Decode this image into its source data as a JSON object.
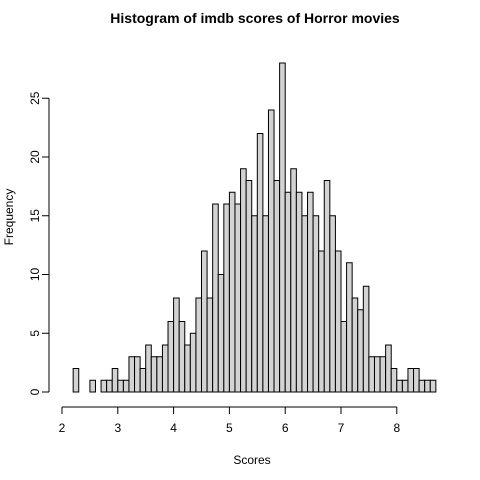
{
  "chart_data": {
    "type": "bar",
    "title": "Histogram of imdb scores of Horror movies",
    "xlabel": "Scores",
    "ylabel": "Frequency",
    "xlim": [
      2,
      8.7
    ],
    "ylim": [
      0,
      28
    ],
    "x_ticks": [
      2,
      3,
      4,
      5,
      6,
      7,
      8
    ],
    "y_ticks": [
      0,
      5,
      10,
      15,
      20,
      25
    ],
    "bin_width": 0.1,
    "bins_start": [
      2.2,
      2.3,
      2.4,
      2.5,
      2.6,
      2.7,
      2.8,
      2.9,
      3.0,
      3.1,
      3.2,
      3.3,
      3.4,
      3.5,
      3.6,
      3.7,
      3.8,
      3.9,
      4.0,
      4.1,
      4.2,
      4.3,
      4.4,
      4.5,
      4.6,
      4.7,
      4.8,
      4.9,
      5.0,
      5.1,
      5.2,
      5.3,
      5.4,
      5.5,
      5.6,
      5.7,
      5.8,
      5.9,
      6.0,
      6.1,
      6.2,
      6.3,
      6.4,
      6.5,
      6.6,
      6.7,
      6.8,
      6.9,
      7.0,
      7.1,
      7.2,
      7.3,
      7.4,
      7.5,
      7.6,
      7.7,
      7.8,
      7.9,
      8.0,
      8.1,
      8.2,
      8.3,
      8.4,
      8.5,
      8.6
    ],
    "values": [
      2,
      0,
      0,
      1,
      0,
      1,
      1,
      2,
      1,
      1,
      3,
      3,
      2,
      4,
      3,
      3,
      4,
      6,
      8,
      6,
      4,
      5,
      8,
      12,
      8,
      16,
      10,
      16,
      17,
      16,
      19,
      18,
      15,
      22,
      15,
      24,
      18,
      28,
      17,
      19,
      17,
      15,
      17,
      15,
      12,
      18,
      15,
      12,
      6,
      11,
      8,
      7,
      9,
      3,
      3,
      3,
      4,
      2,
      1,
      1,
      2,
      2,
      1,
      1,
      1
    ]
  }
}
